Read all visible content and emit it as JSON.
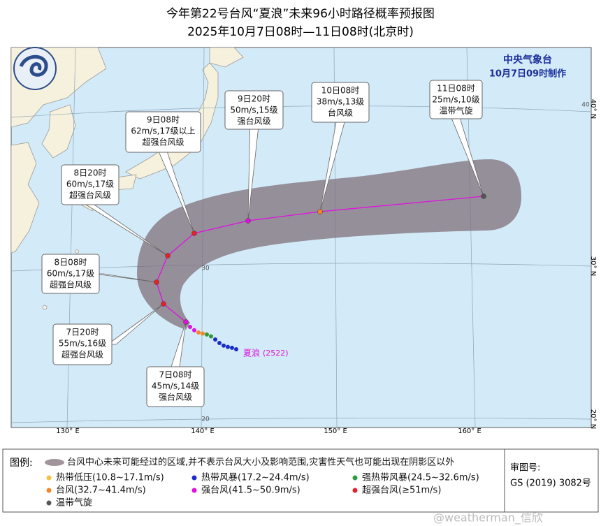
{
  "header": {
    "title": "今年第22号台风“夏浪”未来96小时路径概率预报图",
    "subtitle": "2025年10月7日08时—11日08时(北京时)"
  },
  "agency": {
    "name": "中央气象台",
    "issued": "10月7日09时制作"
  },
  "forecast_points": [
    {
      "time": "7日08时",
      "wind": "45m/s,14级",
      "level": "强台风级",
      "color": "#e010e0"
    },
    {
      "time": "7日20时",
      "wind": "55m/s,16级",
      "level": "超强台风级",
      "color": "#e8202a"
    },
    {
      "time": "8日08时",
      "wind": "60m/s,17级",
      "level": "超强台风级",
      "color": "#e8202a"
    },
    {
      "time": "8日20时",
      "wind": "60m/s,17级",
      "level": "超强台风级",
      "color": "#e8202a"
    },
    {
      "time": "9日08时",
      "wind": "62m/s,17级以上",
      "level": "超强台风级",
      "color": "#e8202a"
    },
    {
      "time": "9日20时",
      "wind": "50m/s,15级",
      "level": "强台风级",
      "color": "#e010e0"
    },
    {
      "time": "10日08时",
      "wind": "38m/s,13级",
      "level": "台风级",
      "color": "#f5862a"
    },
    {
      "time": "11日08时",
      "wind": "25m/s,10级",
      "level": "温带气旋",
      "color": "#555555"
    }
  ],
  "storm": {
    "name": "夏浪",
    "code": "(2522)"
  },
  "map_labels": {
    "longitudes": [
      "130° E",
      "140° E",
      "150° E",
      "160° E"
    ],
    "latitudes_right": [
      "40° N",
      "30° N",
      "20° N"
    ],
    "latitudes_inner": [
      "40",
      "30",
      "20"
    ]
  },
  "legend": {
    "heading": "图例:",
    "cone_note": "台风中心未来可能经过的区域,并不表示台风大小及影响范围,灾害性天气也可能出现在阴影区以外",
    "items": [
      {
        "name": "热带低压(10.8~17.1m/s)",
        "color": "#f5c242"
      },
      {
        "name": "热带风暴(17.2~24.4m/s)",
        "color": "#1a2dc8"
      },
      {
        "name": "强热带风暴(24.5~32.6m/s)",
        "color": "#2e9a3a"
      },
      {
        "name": "台风(32.7~41.4m/s)",
        "color": "#f5862a"
      },
      {
        "name": "强台风(41.5~50.9m/s)",
        "color": "#e010e0"
      },
      {
        "name": "超强台风(≥51m/s)",
        "color": "#e8202a"
      },
      {
        "name": "温带气旋",
        "color": "#555555"
      }
    ]
  },
  "approval": {
    "label": "审图号:",
    "number": "GS (2019) 3082号"
  },
  "watermark": "@weatherman_信欣"
}
